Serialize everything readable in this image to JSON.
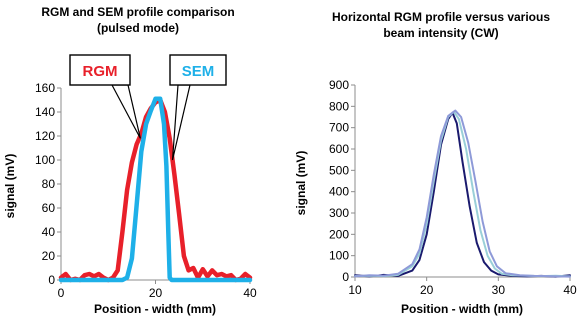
{
  "chart_data": [
    {
      "type": "line",
      "title": "RGM and SEM profile comparison",
      "subtitle": "(pulsed mode)",
      "xlabel": "Position - width (mm)",
      "ylabel": "signal (mV)",
      "xlim": [
        0,
        40
      ],
      "ylim": [
        0,
        160
      ],
      "x_ticks": [
        0,
        20,
        40
      ],
      "y_ticks": [
        0,
        20,
        40,
        60,
        80,
        100,
        120,
        140,
        160
      ],
      "grid": false,
      "legend": "callouts",
      "series": [
        {
          "name": "RGM",
          "color": "#e8202a",
          "points": [
            [
              0,
              2
            ],
            [
              1,
              5
            ],
            [
              2,
              0
            ],
            [
              3,
              1
            ],
            [
              4,
              0
            ],
            [
              5,
              4
            ],
            [
              6,
              5
            ],
            [
              7,
              3
            ],
            [
              8,
              5
            ],
            [
              9,
              2
            ],
            [
              10,
              0
            ],
            [
              11,
              2
            ],
            [
              12,
              8
            ],
            [
              13,
              40
            ],
            [
              14,
              75
            ],
            [
              15,
              98
            ],
            [
              16,
              113
            ],
            [
              17,
              122
            ],
            [
              18,
              136
            ],
            [
              19,
              143
            ],
            [
              20,
              148
            ],
            [
              21,
              150
            ],
            [
              22,
              140
            ],
            [
              23,
              118
            ],
            [
              24,
              88
            ],
            [
              25,
              55
            ],
            [
              26,
              20
            ],
            [
              27,
              8
            ],
            [
              28,
              10
            ],
            [
              29,
              2
            ],
            [
              30,
              9
            ],
            [
              31,
              3
            ],
            [
              32,
              8
            ],
            [
              33,
              4
            ],
            [
              34,
              5
            ],
            [
              35,
              3
            ],
            [
              36,
              4
            ],
            [
              37,
              0
            ],
            [
              38,
              1
            ],
            [
              39,
              5
            ],
            [
              40,
              2
            ]
          ]
        },
        {
          "name": "SEM",
          "color": "#1eb0e8",
          "points": [
            [
              0,
              0
            ],
            [
              13,
              0
            ],
            [
              14,
              2
            ],
            [
              15,
              18
            ],
            [
              16,
              62
            ],
            [
              17,
              107
            ],
            [
              18,
              130
            ],
            [
              19,
              141
            ],
            [
              20,
              151
            ],
            [
              21,
              151
            ],
            [
              21.8,
              130
            ],
            [
              22.3,
              95
            ],
            [
              22.7,
              40
            ],
            [
              23,
              2
            ],
            [
              23.4,
              0
            ],
            [
              40,
              0
            ]
          ]
        }
      ],
      "callouts": [
        {
          "text": "RGM",
          "color": "#e8202a"
        },
        {
          "text": "SEM",
          "color": "#1eb0e8"
        }
      ]
    },
    {
      "type": "line",
      "title": "Horizontal RGM profile versus various",
      "subtitle": "beam intensity (CW)",
      "xlabel": "Position - width (mm)",
      "ylabel": "signal (mV)",
      "xlim": [
        10,
        40
      ],
      "ylim": [
        0,
        900
      ],
      "x_ticks": [
        10,
        20,
        30,
        40
      ],
      "y_ticks": [
        0,
        100,
        200,
        300,
        400,
        500,
        600,
        700,
        800,
        900
      ],
      "grid": false,
      "legend": "none",
      "series": [
        {
          "color": "#1a1a6e",
          "points": [
            [
              10,
              8
            ],
            [
              12,
              3
            ],
            [
              14,
              10
            ],
            [
              16,
              5
            ],
            [
              18,
              30
            ],
            [
              19,
              80
            ],
            [
              20,
              200
            ],
            [
              21,
              400
            ],
            [
              22,
              620
            ],
            [
              23,
              740
            ],
            [
              23.6,
              770
            ],
            [
              24.2,
              720
            ],
            [
              25,
              540
            ],
            [
              26,
              330
            ],
            [
              27,
              160
            ],
            [
              28,
              70
            ],
            [
              29,
              30
            ],
            [
              30,
              12
            ],
            [
              32,
              5
            ],
            [
              34,
              3
            ],
            [
              36,
              5
            ],
            [
              38,
              2
            ],
            [
              40,
              8
            ]
          ]
        },
        {
          "color": "#9ad0d8",
          "points": [
            [
              10,
              4
            ],
            [
              12,
              6
            ],
            [
              14,
              4
            ],
            [
              16,
              10
            ],
            [
              18,
              50
            ],
            [
              19,
              110
            ],
            [
              20,
              250
            ],
            [
              21,
              450
            ],
            [
              22,
              640
            ],
            [
              23,
              750
            ],
            [
              23.8,
              775
            ],
            [
              24.5,
              740
            ],
            [
              25.5,
              600
            ],
            [
              26.5,
              400
            ],
            [
              27.5,
              220
            ],
            [
              28.5,
              100
            ],
            [
              29.5,
              40
            ],
            [
              30.5,
              15
            ],
            [
              32,
              8
            ],
            [
              34,
              6
            ],
            [
              36,
              4
            ],
            [
              38,
              6
            ],
            [
              40,
              3
            ]
          ]
        },
        {
          "color": "#8e9ad8",
          "points": [
            [
              10,
              3
            ],
            [
              12,
              8
            ],
            [
              14,
              6
            ],
            [
              16,
              15
            ],
            [
              18,
              60
            ],
            [
              19,
              130
            ],
            [
              20,
              280
            ],
            [
              21,
              480
            ],
            [
              22,
              660
            ],
            [
              23,
              755
            ],
            [
              24,
              780
            ],
            [
              24.8,
              750
            ],
            [
              25.8,
              630
            ],
            [
              26.8,
              450
            ],
            [
              27.8,
              260
            ],
            [
              28.8,
              120
            ],
            [
              29.8,
              50
            ],
            [
              31,
              18
            ],
            [
              33,
              8
            ],
            [
              35,
              5
            ],
            [
              37,
              4
            ],
            [
              40,
              2
            ]
          ]
        }
      ]
    }
  ]
}
